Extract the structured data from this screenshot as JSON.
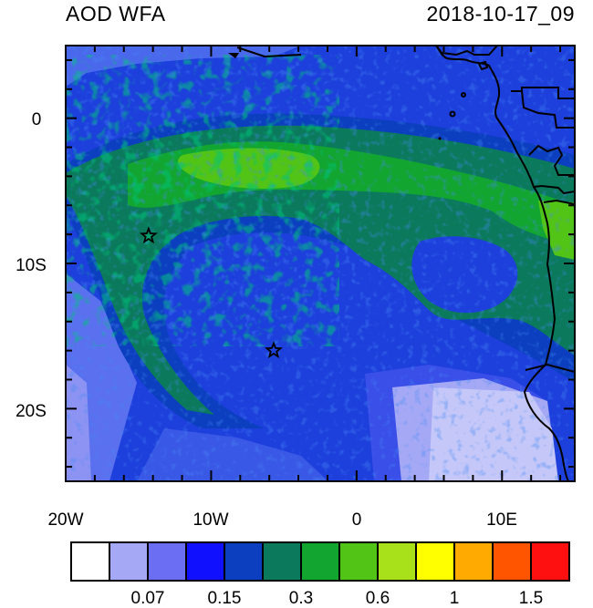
{
  "title_left": "AOD WFA",
  "title_right": "2018-10-17_09",
  "y_axis_labels": [
    "0",
    "10S",
    "20S"
  ],
  "x_axis_labels": [
    "20W",
    "10W",
    "0",
    "10E"
  ],
  "colorbar": {
    "colors": [
      "#ffffff",
      "#a5a9f5",
      "#6b6ef2",
      "#1010ff",
      "#0b3fbf",
      "#0b7a5c",
      "#12a530",
      "#52c416",
      "#a8e01a",
      "#ffff00",
      "#ffaa00",
      "#ff5500",
      "#ff1010"
    ],
    "tick_labels": [
      "0.07",
      "0.15",
      "0.3",
      "0.6",
      "1",
      "1.5"
    ]
  },
  "markers": [
    {
      "name": "star",
      "lon": -14.3,
      "lat": -8.1
    },
    {
      "name": "star",
      "lon": -5.7,
      "lat": -16.0
    }
  ]
}
